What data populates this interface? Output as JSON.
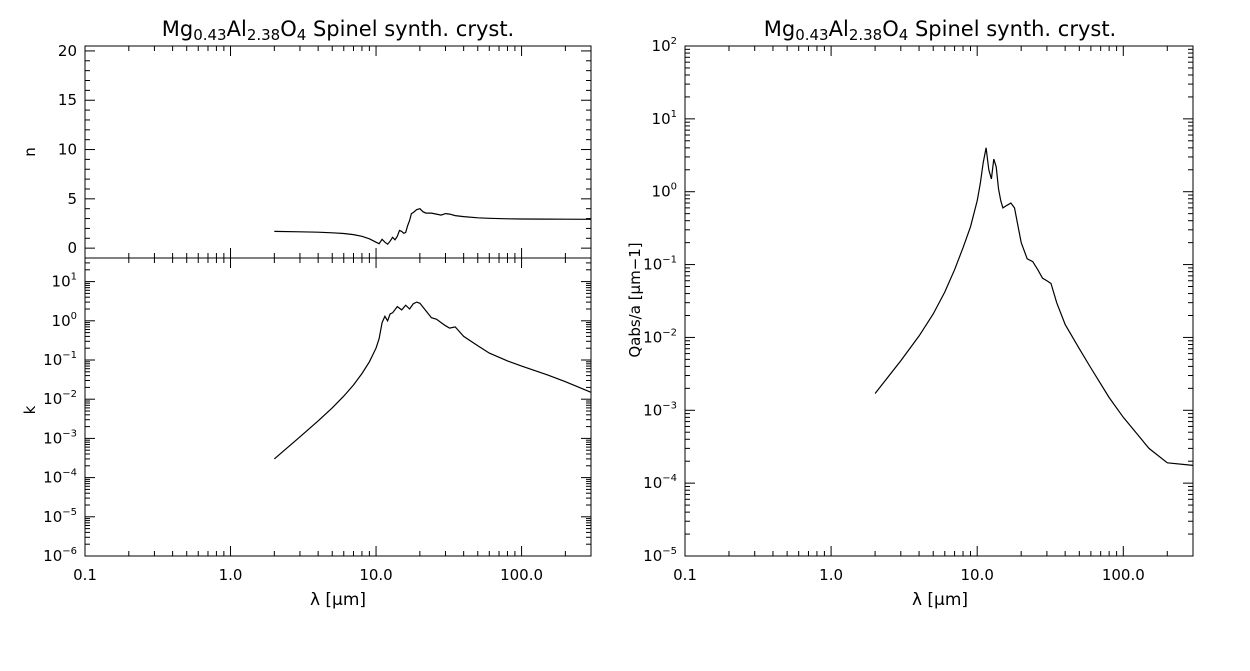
{
  "chart_data": [
    {
      "type": "line",
      "panel": "left-top",
      "title": "Mg0.43Al2.38O4 Spinel synth. cryst.",
      "title_parts": {
        "base": "Mg",
        "sub1": "0.43",
        "mid": "Al",
        "sub2": "2.38",
        "mid2": "O",
        "sub3": "4",
        "rest": " Spinel synth. cryst."
      },
      "xlabel": "λ [μm]",
      "ylabel": "n",
      "xscale": "log",
      "xlim": [
        0.1,
        300
      ],
      "ylim": [
        -1,
        20.5
      ],
      "yticks": [
        "0",
        "5",
        "10",
        "15",
        "20"
      ],
      "xticks": [
        "0.1",
        "1.0",
        "10.0",
        "100.0"
      ],
      "series": [
        {
          "x": [
            2,
            3,
            4,
            5,
            6,
            7,
            8,
            9,
            10,
            10.5,
            11,
            11.5,
            12,
            12.5,
            13,
            13.5,
            14,
            14.5,
            15,
            15.5,
            16,
            16.5,
            17,
            17.5,
            18,
            19,
            20,
            21,
            22,
            24,
            26,
            28,
            30,
            32,
            35,
            40,
            50,
            60,
            80,
            100,
            150,
            200,
            300
          ],
          "y": [
            1.7,
            1.66,
            1.62,
            1.56,
            1.48,
            1.37,
            1.2,
            0.95,
            0.6,
            0.45,
            0.9,
            0.6,
            0.4,
            0.7,
            1.1,
            0.85,
            1.2,
            1.8,
            1.7,
            1.5,
            1.6,
            2.3,
            2.8,
            3.5,
            3.6,
            3.9,
            4.0,
            3.7,
            3.55,
            3.55,
            3.45,
            3.35,
            3.5,
            3.45,
            3.3,
            3.2,
            3.08,
            3.03,
            2.98,
            2.96,
            2.94,
            2.93,
            2.92
          ]
        }
      ]
    },
    {
      "type": "line",
      "panel": "left-bottom",
      "xlabel": "λ [μm]",
      "ylabel": "k",
      "xscale": "log",
      "yscale": "log",
      "xlim": [
        0.1,
        300
      ],
      "ylim": [
        1e-06,
        40
      ],
      "yticks": [
        "10^1",
        "10^0",
        "10^-1",
        "10^-2",
        "10^-3",
        "10^-4",
        "10^-5",
        "10^-6"
      ],
      "xticks": [
        "0.1",
        "1.0",
        "10.0",
        "100.0"
      ],
      "series": [
        {
          "x": [
            2,
            3,
            4,
            5,
            6,
            7,
            8,
            9,
            10,
            10.5,
            11,
            11.5,
            12,
            12.5,
            13,
            14,
            15,
            16,
            17,
            18,
            19,
            20,
            22,
            24,
            26,
            28,
            30,
            32,
            35,
            40,
            50,
            60,
            80,
            100,
            150,
            200,
            300
          ],
          "y": [
            0.0003,
            0.0011,
            0.0028,
            0.006,
            0.012,
            0.023,
            0.045,
            0.09,
            0.2,
            0.35,
            0.9,
            1.3,
            1.0,
            1.5,
            1.6,
            2.3,
            1.9,
            2.5,
            2.0,
            2.7,
            3.0,
            2.8,
            1.8,
            1.2,
            1.1,
            0.9,
            0.75,
            0.65,
            0.7,
            0.4,
            0.23,
            0.15,
            0.095,
            0.07,
            0.042,
            0.028,
            0.015
          ]
        }
      ]
    },
    {
      "type": "line",
      "panel": "right",
      "title": "Mg0.43Al2.38O4 Spinel synth. cryst.",
      "xlabel": "λ [μm]",
      "ylabel": "Qabs/a [μm−1]",
      "xscale": "log",
      "yscale": "log",
      "xlim": [
        0.1,
        300
      ],
      "ylim": [
        1e-05,
        100
      ],
      "yticks": [
        "10^2",
        "10^1",
        "10^0",
        "10^-1",
        "10^-2",
        "10^-3",
        "10^-4",
        "10^-5"
      ],
      "xticks": [
        "0.1",
        "1.0",
        "10.0",
        "100.0"
      ],
      "series": [
        {
          "x": [
            2,
            3,
            4,
            5,
            6,
            7,
            8,
            9,
            10,
            10.5,
            11,
            11.5,
            12,
            12.5,
            13,
            13.5,
            14,
            14.5,
            15,
            16,
            17,
            18,
            20,
            22,
            24,
            26,
            28,
            30,
            32,
            35,
            40,
            50,
            60,
            80,
            100,
            150,
            200,
            300
          ],
          "y": [
            0.0017,
            0.0048,
            0.0105,
            0.021,
            0.042,
            0.085,
            0.17,
            0.33,
            0.75,
            1.3,
            2.5,
            4.0,
            2.0,
            1.5,
            2.8,
            2.2,
            1.1,
            0.75,
            0.6,
            0.65,
            0.7,
            0.6,
            0.2,
            0.12,
            0.11,
            0.085,
            0.065,
            0.06,
            0.055,
            0.03,
            0.015,
            0.007,
            0.0038,
            0.0015,
            0.0008,
            0.0003,
            0.00019,
            0.000175
          ]
        }
      ]
    }
  ]
}
